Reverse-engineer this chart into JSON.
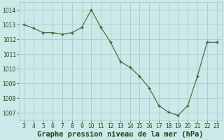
{
  "x": [
    3,
    4,
    5,
    6,
    7,
    8,
    9,
    10,
    11,
    12,
    13,
    14,
    15,
    16,
    17,
    18,
    19,
    20,
    21,
    22,
    23
  ],
  "y": [
    1013.0,
    1012.75,
    1012.45,
    1012.45,
    1012.35,
    1012.45,
    1012.8,
    1014.0,
    1012.8,
    1011.8,
    1010.5,
    1010.1,
    1009.5,
    1008.7,
    1007.5,
    1007.05,
    1006.85,
    1007.5,
    1009.5,
    1011.8,
    1011.8
  ],
  "line_color": "#2d6a2d",
  "marker": "+",
  "marker_size": 3.5,
  "marker_lw": 1.0,
  "bg_color": "#cce8e8",
  "grid_color": "#aacccc",
  "xlabel": "Graphe pression niveau de la mer (hPa)",
  "xlabel_fontsize": 7.5,
  "xlabel_color": "#1a4a1a",
  "ylim": [
    1006.5,
    1014.5
  ],
  "yticks": [
    1007,
    1008,
    1009,
    1010,
    1011,
    1012,
    1013,
    1014
  ],
  "xticks": [
    3,
    4,
    5,
    6,
    7,
    8,
    9,
    10,
    11,
    12,
    13,
    14,
    15,
    16,
    17,
    18,
    19,
    20,
    21,
    22,
    23
  ],
  "tick_fontsize": 5.5,
  "tick_color": "#1a4a1a",
  "linewidth": 0.8
}
